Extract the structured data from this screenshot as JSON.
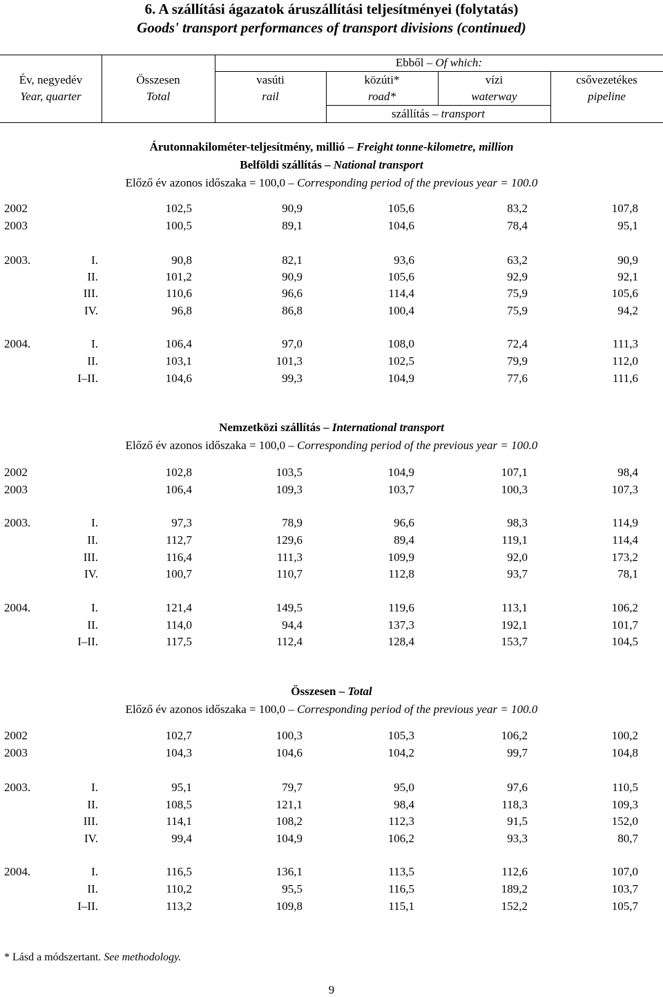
{
  "title": "6. A szállítási ágazatok áruszállítási teljesítményei (folytatás)",
  "subtitle": "Goods' transport performances of transport divisions (continued)",
  "header": {
    "year_hu": "Év, negyedév",
    "year_en": "Year, quarter",
    "total_hu": "Összesen",
    "total_en": "Total",
    "of_which_hu": "Ebből",
    "of_which_en": "Of which:",
    "rail_hu": "vasúti",
    "rail_en": "rail",
    "road_hu": "közúti*",
    "road_en": "road*",
    "water_hu": "vízi",
    "water_en": "waterway",
    "pipe_hu": "csővezetékes",
    "pipe_en": "pipeline",
    "transport_hu": "szállítás",
    "transport_en": "transport"
  },
  "measure": {
    "hu": "Árutonnakilométer-teljesítmény, millió",
    "en": "Freight tonne-kilometre, million"
  },
  "sections": [
    {
      "title_hu": "Belföldi szállítás",
      "title_en": "National transport",
      "basis_hu": "Előző év azonos időszaka = 100,0",
      "basis_en": "Corresponding period of the previous year = 100.0",
      "rows": [
        {
          "year": "2002",
          "q": "",
          "v": [
            "102,5",
            "90,9",
            "105,6",
            "83,2",
            "107,8"
          ]
        },
        {
          "year": "2003",
          "q": "",
          "v": [
            "100,5",
            "89,1",
            "104,6",
            "78,4",
            "95,1"
          ]
        },
        {
          "year": "2003.",
          "q": "I.",
          "v": [
            "90,8",
            "82,1",
            "93,6",
            "63,2",
            "90,9"
          ]
        },
        {
          "year": "",
          "q": "II.",
          "v": [
            "101,2",
            "90,9",
            "105,6",
            "92,9",
            "92,1"
          ]
        },
        {
          "year": "",
          "q": "III.",
          "v": [
            "110,6",
            "96,6",
            "114,4",
            "75,9",
            "105,6"
          ]
        },
        {
          "year": "",
          "q": "IV.",
          "v": [
            "96,8",
            "86,8",
            "100,4",
            "75,9",
            "94,2"
          ]
        },
        {
          "year": "2004.",
          "q": "I.",
          "v": [
            "106,4",
            "97,0",
            "108,0",
            "72,4",
            "111,3"
          ]
        },
        {
          "year": "",
          "q": "II.",
          "v": [
            "103,1",
            "101,3",
            "102,5",
            "79,9",
            "112,0"
          ]
        },
        {
          "year": "",
          "q": "I–II.",
          "v": [
            "104,6",
            "99,3",
            "104,9",
            "77,6",
            "111,6"
          ]
        }
      ]
    },
    {
      "title_hu": "Nemzetközi szállítás",
      "title_en": "International transport",
      "basis_hu": "Előző év azonos időszaka = 100,0",
      "basis_en": "Corresponding period of the previous year = 100.0",
      "rows": [
        {
          "year": "2002",
          "q": "",
          "v": [
            "102,8",
            "103,5",
            "104,9",
            "107,1",
            "98,4"
          ]
        },
        {
          "year": "2003",
          "q": "",
          "v": [
            "106,4",
            "109,3",
            "103,7",
            "100,3",
            "107,3"
          ]
        },
        {
          "year": "2003.",
          "q": "I.",
          "v": [
            "97,3",
            "78,9",
            "96,6",
            "98,3",
            "114,9"
          ]
        },
        {
          "year": "",
          "q": "II.",
          "v": [
            "112,7",
            "129,6",
            "89,4",
            "119,1",
            "114,4"
          ]
        },
        {
          "year": "",
          "q": "III.",
          "v": [
            "116,4",
            "111,3",
            "109,9",
            "92,0",
            "173,2"
          ]
        },
        {
          "year": "",
          "q": "IV.",
          "v": [
            "100,7",
            "110,7",
            "112,8",
            "93,7",
            "78,1"
          ]
        },
        {
          "year": "2004.",
          "q": "I.",
          "v": [
            "121,4",
            "149,5",
            "119,6",
            "113,1",
            "106,2"
          ]
        },
        {
          "year": "",
          "q": "II.",
          "v": [
            "114,0",
            "94,4",
            "137,3",
            "192,1",
            "101,7"
          ]
        },
        {
          "year": "",
          "q": "I–II.",
          "v": [
            "117,5",
            "112,4",
            "128,4",
            "153,7",
            "104,5"
          ]
        }
      ]
    },
    {
      "title_hu": "Összesen",
      "title_en": "Total",
      "basis_hu": "Előző év azonos időszaka = 100,0",
      "basis_en": "Corresponding period of the previous year = 100.0",
      "rows": [
        {
          "year": "2002",
          "q": "",
          "v": [
            "102,7",
            "100,3",
            "105,3",
            "106,2",
            "100,2"
          ]
        },
        {
          "year": "2003",
          "q": "",
          "v": [
            "104,3",
            "104,6",
            "104,2",
            "99,7",
            "104,8"
          ]
        },
        {
          "year": "2003.",
          "q": "I.",
          "v": [
            "95,1",
            "79,7",
            "95,0",
            "97,6",
            "110,5"
          ]
        },
        {
          "year": "",
          "q": "II.",
          "v": [
            "108,5",
            "121,1",
            "98,4",
            "118,3",
            "109,3"
          ]
        },
        {
          "year": "",
          "q": "III.",
          "v": [
            "114,1",
            "108,2",
            "112,3",
            "91,5",
            "152,0"
          ]
        },
        {
          "year": "",
          "q": "IV.",
          "v": [
            "99,4",
            "104,9",
            "106,2",
            "93,3",
            "80,7"
          ]
        },
        {
          "year": "2004.",
          "q": "I.",
          "v": [
            "116,5",
            "136,1",
            "113,5",
            "112,6",
            "107,0"
          ]
        },
        {
          "year": "",
          "q": "II.",
          "v": [
            "110,2",
            "95,5",
            "116,5",
            "189,2",
            "103,7"
          ]
        },
        {
          "year": "",
          "q": "I–II.",
          "v": [
            "113,2",
            "109,8",
            "115,1",
            "152,2",
            "105,7"
          ]
        }
      ]
    }
  ],
  "footnote_hu": "* Lásd a módszertant.",
  "footnote_en": "See methodology.",
  "page_number": "9"
}
